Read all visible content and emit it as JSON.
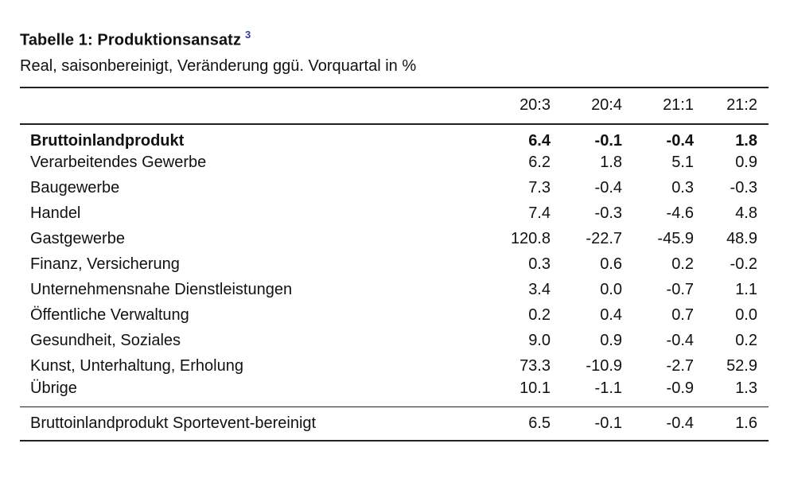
{
  "doc": {
    "title": "Tabelle 1: Produktionsansatz",
    "footnote_marker": "3",
    "subtitle": "Real, saisonbereinigt, Veränderung ggü. Vorquartal in %"
  },
  "table": {
    "columns": [
      "20:3",
      "20:4",
      "21:1",
      "21:2"
    ],
    "rows": [
      {
        "label": "Bruttoinlandprodukt",
        "values": [
          "6.4",
          "-0.1",
          "-0.4",
          "1.8"
        ],
        "bold": true
      },
      {
        "label": "Verarbeitendes Gewerbe",
        "values": [
          "6.2",
          "1.8",
          "5.1",
          "0.9"
        ],
        "bold": false
      },
      {
        "label": "Baugewerbe",
        "values": [
          "7.3",
          "-0.4",
          "0.3",
          "-0.3"
        ],
        "bold": false
      },
      {
        "label": "Handel",
        "values": [
          "7.4",
          "-0.3",
          "-4.6",
          "4.8"
        ],
        "bold": false
      },
      {
        "label": "Gastgewerbe",
        "values": [
          "120.8",
          "-22.7",
          "-45.9",
          "48.9"
        ],
        "bold": false
      },
      {
        "label": "Finanz, Versicherung",
        "values": [
          "0.3",
          "0.6",
          "0.2",
          "-0.2"
        ],
        "bold": false
      },
      {
        "label": "Unternehmensnahe Dienstleistungen",
        "values": [
          "3.4",
          "0.0",
          "-0.7",
          "1.1"
        ],
        "bold": false
      },
      {
        "label": "Öffentliche Verwaltung",
        "values": [
          "0.2",
          "0.4",
          "0.7",
          "0.0"
        ],
        "bold": false
      },
      {
        "label": "Gesundheit, Soziales",
        "values": [
          "9.0",
          "0.9",
          "-0.4",
          "0.2"
        ],
        "bold": false
      },
      {
        "label": "Kunst, Unterhaltung, Erholung",
        "values": [
          "73.3",
          "-10.9",
          "-2.7",
          "52.9"
        ],
        "bold": false
      },
      {
        "label": "Übrige",
        "values": [
          "10.1",
          "-1.1",
          "-0.9",
          "1.3"
        ],
        "bold": false
      }
    ],
    "footer_row": {
      "label": "Bruttoinlandprodukt Sportevent-bereinigt",
      "values": [
        "6.5",
        "-0.1",
        "-0.4",
        "1.6"
      ]
    }
  },
  "colors": {
    "text": "#111111",
    "rule": "#222222",
    "footnote_link": "#3a3a9c",
    "background": "#ffffff"
  }
}
